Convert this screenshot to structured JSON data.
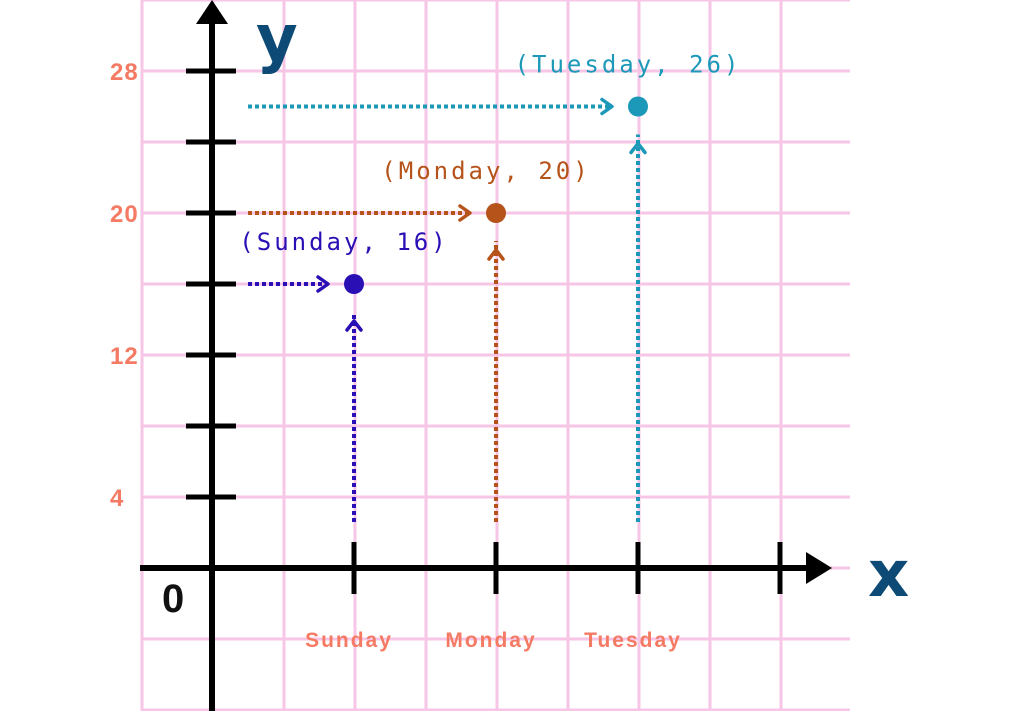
{
  "chart_data": {
    "type": "scatter",
    "categories": [
      "Sunday",
      "Monday",
      "Tuesday"
    ],
    "points": [
      {
        "x": "Sunday",
        "y": 16,
        "label": "(Sunday, 16)",
        "color": "#2a0fb5"
      },
      {
        "x": "Monday",
        "y": 20,
        "label": "(Monday, 20)",
        "color": "#b5531a"
      },
      {
        "x": "Tuesday",
        "y": 26,
        "label": "(Tuesday, 26)",
        "color": "#1c98b8"
      }
    ],
    "yticks": [
      4,
      12,
      20,
      28
    ],
    "ylim": [
      0,
      30
    ],
    "xlabel": "x",
    "ylabel": "y",
    "origin": "0",
    "grid": true,
    "colors": {
      "grid": "#f7c6e6",
      "axis": "#000000",
      "tick_label": "#f47a64",
      "axis_letter": "#0d4a75"
    }
  }
}
